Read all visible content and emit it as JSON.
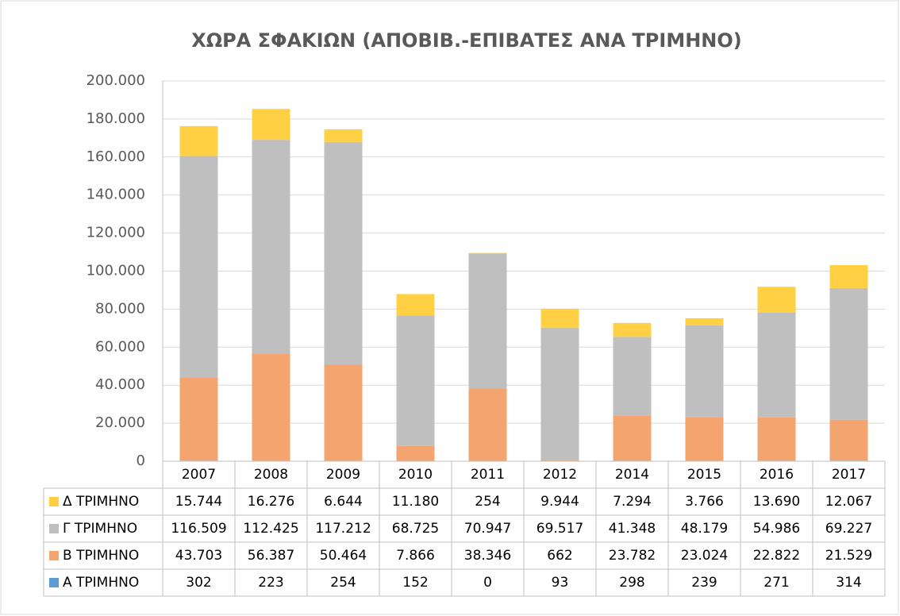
{
  "chart_data": {
    "type": "bar",
    "stacked": true,
    "title": "ΧΩΡΑ ΣΦΑΚΙΩΝ (ΑΠΟΒΙΒ.-ΕΠΙΒΑΤΕΣ ΑΝΑ ΤΡΙΜΗΝΟ)",
    "categories": [
      "2007",
      "2008",
      "2009",
      "2010",
      "2011",
      "2012",
      "2014",
      "2015",
      "2016",
      "2017"
    ],
    "series": [
      {
        "name": "Α ΤΡΙΜΗΝΟ",
        "color": "#5b9bd5",
        "values": [
          302,
          223,
          254,
          152,
          0,
          93,
          298,
          239,
          271,
          314
        ],
        "value_labels": [
          "302",
          "223",
          "254",
          "152",
          "0",
          "93",
          "298",
          "239",
          "271",
          "314"
        ]
      },
      {
        "name": "Β ΤΡΙΜΗΝΟ",
        "color": "#f4a46e",
        "values": [
          43703,
          56387,
          50464,
          7866,
          38346,
          662,
          23782,
          23024,
          22822,
          21529
        ],
        "value_labels": [
          "43.703",
          "56.387",
          "50.464",
          "7.866",
          "38.346",
          "662",
          "23.782",
          "23.024",
          "22.822",
          "21.529"
        ]
      },
      {
        "name": "Γ ΤΡΙΜΗΝΟ",
        "color": "#bfbfbf",
        "values": [
          116509,
          112425,
          117212,
          68725,
          70947,
          69517,
          41348,
          48179,
          54986,
          69227
        ],
        "value_labels": [
          "116.509",
          "112.425",
          "117.212",
          "68.725",
          "70.947",
          "69.517",
          "41.348",
          "48.179",
          "54.986",
          "69.227"
        ]
      },
      {
        "name": "Δ ΤΡΙΜΗΝΟ",
        "color": "#ffd044",
        "values": [
          15744,
          16276,
          6644,
          11180,
          254,
          9944,
          7294,
          3766,
          13690,
          12067
        ],
        "value_labels": [
          "15.744",
          "16.276",
          "6.644",
          "11.180",
          "254",
          "9.944",
          "7.294",
          "3.766",
          "13.690",
          "12.067"
        ]
      }
    ],
    "ylim": [
      0,
      200000
    ],
    "yticks": [
      0,
      {
        "value": 20000,
        "label": "20.000"
      },
      {
        "value": 40000,
        "label": "40.000"
      },
      {
        "value": 60000,
        "label": "60.000"
      },
      {
        "value": 80000,
        "label": "80.000"
      },
      {
        "value": 100000,
        "label": "100.000"
      },
      {
        "value": 120000,
        "label": "120.000"
      },
      {
        "value": 140000,
        "label": "140.000"
      },
      {
        "value": 160000,
        "label": "160.000"
      },
      {
        "value": 180000,
        "label": "180.000"
      },
      {
        "value": 200000,
        "label": "200.000"
      }
    ],
    "grid": true
  }
}
